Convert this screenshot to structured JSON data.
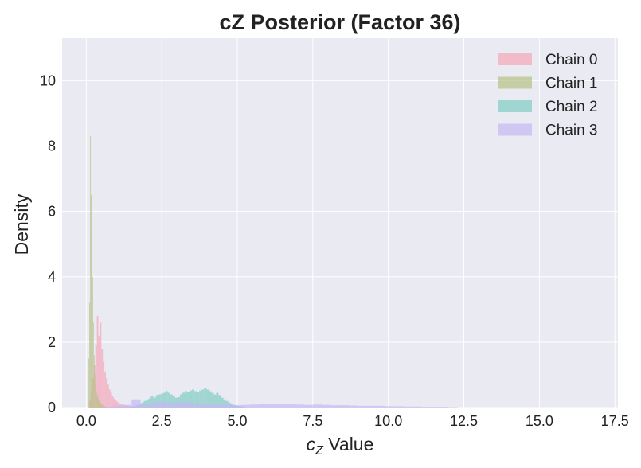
{
  "chart_data": {
    "type": "histogram",
    "title": "cZ Posterior (Factor 36)",
    "xlabel": "Value",
    "xlabel_symbol": "c",
    "xlabel_subscript": "Z",
    "ylabel": "Density",
    "xlim": [
      -0.8,
      17.6
    ],
    "ylim": [
      0,
      11.3
    ],
    "xticks": [
      0.0,
      2.5,
      5.0,
      7.5,
      10.0,
      12.5,
      15.0,
      17.5
    ],
    "xtick_labels": [
      "0.0",
      "2.5",
      "5.0",
      "7.5",
      "10.0",
      "12.5",
      "15.0",
      "17.5"
    ],
    "yticks": [
      0,
      2,
      4,
      6,
      8,
      10
    ],
    "ytick_labels": [
      "0",
      "2",
      "4",
      "6",
      "8",
      "10"
    ],
    "grid": true,
    "legend_position": "top-right",
    "series": [
      {
        "name": "Chain 0",
        "color": "#f4a7b9",
        "bin_width": 0.05,
        "bins": [
          [
            0.1,
            0.2
          ],
          [
            0.15,
            0.5
          ],
          [
            0.2,
            0.9
          ],
          [
            0.25,
            1.3
          ],
          [
            0.3,
            1.9
          ],
          [
            0.35,
            2.8
          ],
          [
            0.4,
            2.2
          ],
          [
            0.45,
            2.6
          ],
          [
            0.5,
            1.8
          ],
          [
            0.55,
            1.4
          ],
          [
            0.6,
            1.1
          ],
          [
            0.65,
            0.9
          ],
          [
            0.7,
            0.7
          ],
          [
            0.75,
            0.55
          ],
          [
            0.8,
            0.45
          ],
          [
            0.85,
            0.35
          ],
          [
            0.9,
            0.28
          ],
          [
            0.95,
            0.22
          ],
          [
            1.0,
            0.18
          ],
          [
            1.05,
            0.15
          ],
          [
            1.1,
            0.12
          ],
          [
            1.15,
            0.1
          ],
          [
            1.2,
            0.08
          ],
          [
            1.25,
            0.07
          ],
          [
            1.3,
            0.06
          ],
          [
            1.35,
            0.05
          ],
          [
            1.4,
            0.04
          ],
          [
            1.45,
            0.03
          ],
          [
            1.5,
            0.03
          ],
          [
            1.55,
            0.02
          ],
          [
            1.6,
            0.02
          ],
          [
            1.65,
            0.02
          ],
          [
            1.7,
            0.01
          ],
          [
            1.75,
            0.01
          ]
        ]
      },
      {
        "name": "Chain 1",
        "color": "#b5c185",
        "bin_width": 0.025,
        "bins": [
          [
            0.05,
            0.3
          ],
          [
            0.075,
            1.5
          ],
          [
            0.1,
            3.2
          ],
          [
            0.125,
            8.3
          ],
          [
            0.15,
            6.5
          ],
          [
            0.175,
            5.5
          ],
          [
            0.2,
            4.0
          ],
          [
            0.225,
            2.6
          ],
          [
            0.25,
            1.6
          ],
          [
            0.275,
            1.0
          ],
          [
            0.3,
            0.7
          ],
          [
            0.325,
            0.5
          ],
          [
            0.35,
            0.4
          ],
          [
            0.375,
            0.3
          ],
          [
            0.4,
            0.25
          ],
          [
            0.425,
            0.2
          ],
          [
            0.45,
            0.15
          ],
          [
            0.475,
            0.12
          ],
          [
            0.5,
            0.1
          ],
          [
            0.525,
            0.08
          ],
          [
            0.55,
            0.06
          ],
          [
            0.575,
            0.05
          ],
          [
            0.6,
            0.04
          ],
          [
            0.625,
            0.03
          ],
          [
            0.65,
            0.02
          ],
          [
            0.675,
            0.02
          ]
        ]
      },
      {
        "name": "Chain 2",
        "color": "#7fcdc3",
        "bin_width": 0.08,
        "bins": [
          [
            1.5,
            0.03
          ],
          [
            1.58,
            0.05
          ],
          [
            1.66,
            0.08
          ],
          [
            1.74,
            0.12
          ],
          [
            1.82,
            0.15
          ],
          [
            1.9,
            0.2
          ],
          [
            1.98,
            0.22
          ],
          [
            2.06,
            0.28
          ],
          [
            2.14,
            0.35
          ],
          [
            2.22,
            0.3
          ],
          [
            2.3,
            0.38
          ],
          [
            2.38,
            0.4
          ],
          [
            2.46,
            0.42
          ],
          [
            2.54,
            0.45
          ],
          [
            2.62,
            0.5
          ],
          [
            2.7,
            0.45
          ],
          [
            2.78,
            0.4
          ],
          [
            2.86,
            0.35
          ],
          [
            2.94,
            0.3
          ],
          [
            3.02,
            0.32
          ],
          [
            3.1,
            0.4
          ],
          [
            3.18,
            0.45
          ],
          [
            3.26,
            0.5
          ],
          [
            3.34,
            0.48
          ],
          [
            3.42,
            0.52
          ],
          [
            3.5,
            0.55
          ],
          [
            3.58,
            0.5
          ],
          [
            3.66,
            0.48
          ],
          [
            3.74,
            0.52
          ],
          [
            3.82,
            0.55
          ],
          [
            3.9,
            0.6
          ],
          [
            3.98,
            0.55
          ],
          [
            4.06,
            0.5
          ],
          [
            4.14,
            0.45
          ],
          [
            4.22,
            0.4
          ],
          [
            4.3,
            0.45
          ],
          [
            4.38,
            0.38
          ],
          [
            4.46,
            0.3
          ],
          [
            4.54,
            0.25
          ],
          [
            4.62,
            0.2
          ],
          [
            4.7,
            0.15
          ],
          [
            4.78,
            0.1
          ],
          [
            4.86,
            0.08
          ],
          [
            4.94,
            0.06
          ],
          [
            5.02,
            0.04
          ],
          [
            5.1,
            0.03
          ],
          [
            5.18,
            0.02
          ]
        ]
      },
      {
        "name": "Chain 3",
        "color": "#c4b8f2",
        "bin_width": 0.3,
        "bins": [
          [
            0.6,
            0.02
          ],
          [
            0.9,
            0.05
          ],
          [
            1.2,
            0.08
          ],
          [
            1.5,
            0.25
          ],
          [
            1.8,
            0.12
          ],
          [
            2.1,
            0.15
          ],
          [
            2.4,
            0.18
          ],
          [
            2.7,
            0.15
          ],
          [
            3.0,
            0.17
          ],
          [
            3.3,
            0.15
          ],
          [
            3.6,
            0.12
          ],
          [
            3.9,
            0.13
          ],
          [
            4.2,
            0.1
          ],
          [
            4.5,
            0.11
          ],
          [
            4.8,
            0.07
          ],
          [
            5.1,
            0.08
          ],
          [
            5.4,
            0.09
          ],
          [
            5.7,
            0.11
          ],
          [
            6.0,
            0.12
          ],
          [
            6.3,
            0.11
          ],
          [
            6.6,
            0.1
          ],
          [
            6.9,
            0.09
          ],
          [
            7.2,
            0.08
          ],
          [
            7.5,
            0.09
          ],
          [
            7.8,
            0.08
          ],
          [
            8.1,
            0.07
          ],
          [
            8.4,
            0.07
          ],
          [
            8.7,
            0.06
          ],
          [
            9.0,
            0.05
          ],
          [
            9.3,
            0.05
          ],
          [
            9.6,
            0.05
          ],
          [
            9.9,
            0.04
          ],
          [
            10.2,
            0.04
          ],
          [
            10.5,
            0.03
          ],
          [
            10.8,
            0.03
          ],
          [
            11.1,
            0.02
          ],
          [
            11.4,
            0.02
          ],
          [
            11.7,
            0.02
          ],
          [
            12.0,
            0.01
          ]
        ]
      }
    ]
  }
}
